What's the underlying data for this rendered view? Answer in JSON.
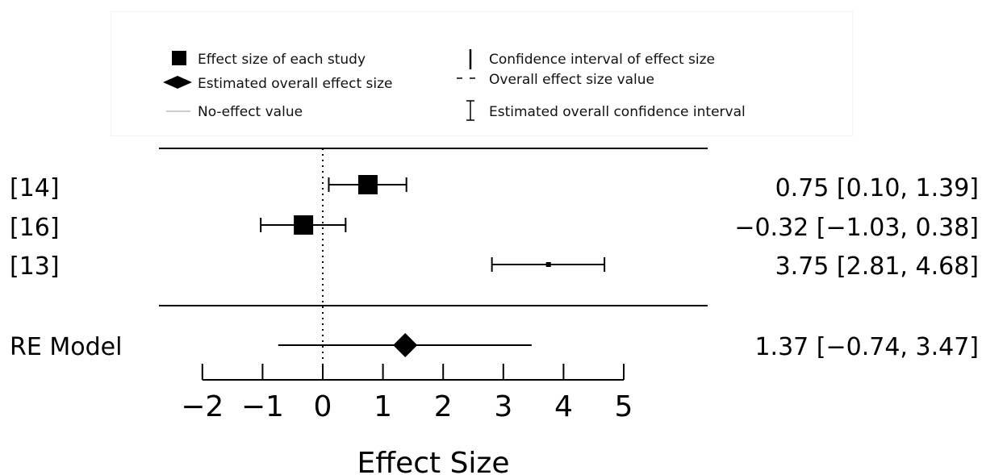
{
  "legend": {
    "items": [
      {
        "symbol": "square",
        "label": "Effect size of each study"
      },
      {
        "symbol": "diamond",
        "label": "Estimated overall effect size"
      },
      {
        "symbol": "thin-line",
        "label": "No-effect value"
      },
      {
        "symbol": "vertical-bar",
        "label": "Confidence interval of effect size"
      },
      {
        "symbol": "dashed-line",
        "label": "Overall effect size value"
      },
      {
        "symbol": "i-beam",
        "label": "Estimated overall confidence interval"
      }
    ]
  },
  "chart_data": {
    "type": "forest",
    "xlabel": "Effect Size",
    "xlim": [
      -2,
      5
    ],
    "xticks": [
      "−2",
      "−1",
      "0",
      "1",
      "2",
      "3",
      "4",
      "5"
    ],
    "xtick_values": [
      -2,
      -1,
      0,
      1,
      2,
      3,
      4,
      5
    ],
    "reference_line": 0,
    "studies": [
      {
        "label": "[14]",
        "estimate": 0.75,
        "ci_low": 0.1,
        "ci_high": 1.39,
        "text": "0.75 [0.10, 1.39]",
        "marker": "large"
      },
      {
        "label": "[16]",
        "estimate": -0.32,
        "ci_low": -1.03,
        "ci_high": 0.38,
        "text": "−0.32 [−1.03, 0.38]",
        "marker": "large"
      },
      {
        "label": "[13]",
        "estimate": 3.75,
        "ci_low": 2.81,
        "ci_high": 4.68,
        "text": "3.75 [2.81, 4.68]",
        "marker": "small"
      }
    ],
    "summary": {
      "label": "RE Model",
      "estimate": 1.37,
      "ci_low": -0.74,
      "ci_high": 3.47,
      "text": "1.37 [−0.74, 3.47]"
    }
  }
}
